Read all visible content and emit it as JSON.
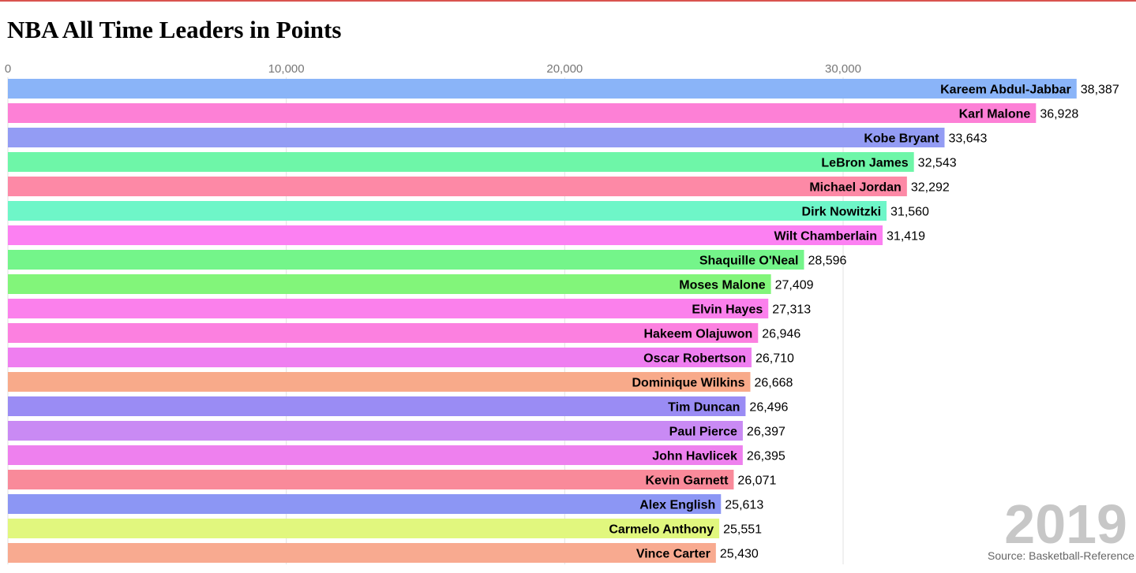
{
  "page": {
    "title": "NBA All Time Leaders in Points",
    "year": "2019",
    "source": "Source: Basketball-Reference"
  },
  "chart_data": {
    "type": "bar",
    "orientation": "horizontal",
    "title": "NBA All Time Leaders in Points",
    "xlabel": "",
    "ylabel": "",
    "xlim": [
      0,
      40000
    ],
    "xticks": [
      0,
      10000,
      20000,
      30000
    ],
    "xtick_labels": [
      "0",
      "10,000",
      "20,000",
      "30,000"
    ],
    "grid": true,
    "categories": [
      "Kareem Abdul-Jabbar",
      "Karl Malone",
      "Kobe Bryant",
      "LeBron James",
      "Michael Jordan",
      "Dirk Nowitzki",
      "Wilt Chamberlain",
      "Shaquille O'Neal",
      "Moses Malone",
      "Elvin Hayes",
      "Hakeem Olajuwon",
      "Oscar Robertson",
      "Dominique Wilkins",
      "Tim Duncan",
      "Paul Pierce",
      "John Havlicek",
      "Kevin Garnett",
      "Alex English",
      "Carmelo Anthony",
      "Vince Carter"
    ],
    "values": [
      38387,
      36928,
      33643,
      32543,
      32292,
      31560,
      31419,
      28596,
      27409,
      27313,
      26946,
      26710,
      26668,
      26496,
      26397,
      26395,
      26071,
      25613,
      25551,
      25430
    ],
    "value_labels": [
      "38,387",
      "36,928",
      "33,643",
      "32,543",
      "32,292",
      "31,560",
      "31,419",
      "28,596",
      "27,409",
      "27,313",
      "26,946",
      "26,710",
      "26,668",
      "26,496",
      "26,397",
      "26,395",
      "26,071",
      "25,613",
      "25,551",
      "25,430"
    ],
    "colors": [
      "#8ab4f8",
      "#fd80d6",
      "#939cf4",
      "#6ef6a8",
      "#fd89a6",
      "#6ef6c8",
      "#fc80f2",
      "#74f58a",
      "#82f57a",
      "#fb80ec",
      "#fc80e0",
      "#ef7ef0",
      "#f8aa8a",
      "#9a8cf4",
      "#c98af4",
      "#ee80ee",
      "#f98a9a",
      "#8c96f4",
      "#e1f77e",
      "#f8aa90"
    ]
  }
}
